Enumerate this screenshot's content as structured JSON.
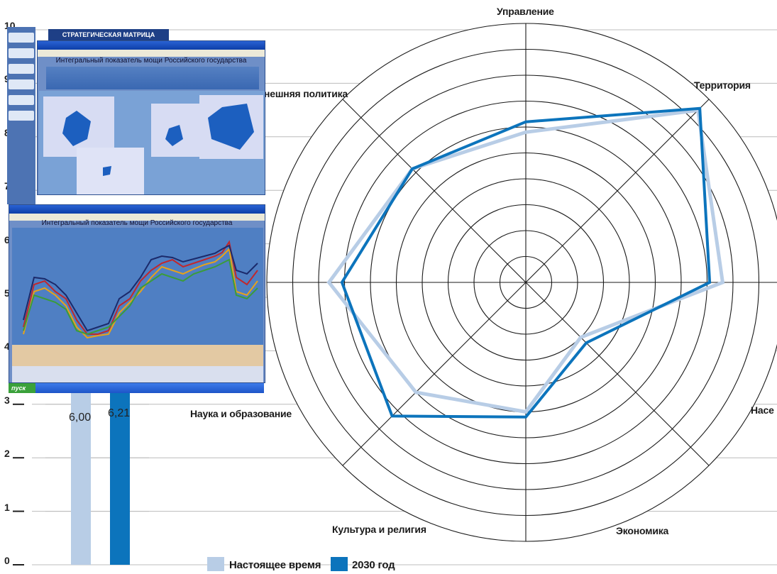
{
  "bar_chart": {
    "chart_data": {
      "type": "bar",
      "categories": [
        "Настоящее время",
        "2030 год"
      ],
      "values": [
        6.0,
        6.21
      ],
      "value_labels": [
        "6,00",
        "6,21"
      ],
      "yticks": [
        "0",
        "1",
        "2",
        "3",
        "4",
        "5",
        "6",
        "7",
        "8",
        "9",
        "10"
      ],
      "ylim": [
        0,
        10
      ],
      "colors": [
        "#b8cde6",
        "#0c74bc"
      ]
    }
  },
  "radar_chart": {
    "chart_data": {
      "type": "radar",
      "axes": [
        "Управление",
        "Территория",
        "Насе",
        "Экономика",
        "Культура и религия",
        "Наука и образование",
        "",
        "нешняя политика"
      ],
      "rings": 10,
      "rlim": [
        0,
        10
      ],
      "series": [
        {
          "name": "Настоящее время",
          "color": "#b8cde6",
          "values": [
            5.8,
            9.4,
            7.6,
            3.0,
            5.0,
            6.0,
            7.6,
            6.2
          ]
        },
        {
          "name": "2030 год",
          "color": "#0c74bc",
          "values": [
            6.2,
            9.5,
            7.1,
            3.3,
            5.2,
            7.3,
            7.1,
            6.2
          ]
        }
      ]
    }
  },
  "legend": {
    "current": "Настоящее время",
    "future": "2030 год",
    "current_color": "#b8cde6",
    "future_color": "#0c74bc"
  },
  "screenshot_top": {
    "banner": "СТРАТЕГИЧЕСКАЯ МАТРИЦА РОССИИ",
    "title": "Интегральный показатель мощи Российского государства"
  },
  "screenshot_bottom": {
    "title": "Интегральный показатель мощи Российского государства",
    "start_button": "пуск"
  }
}
